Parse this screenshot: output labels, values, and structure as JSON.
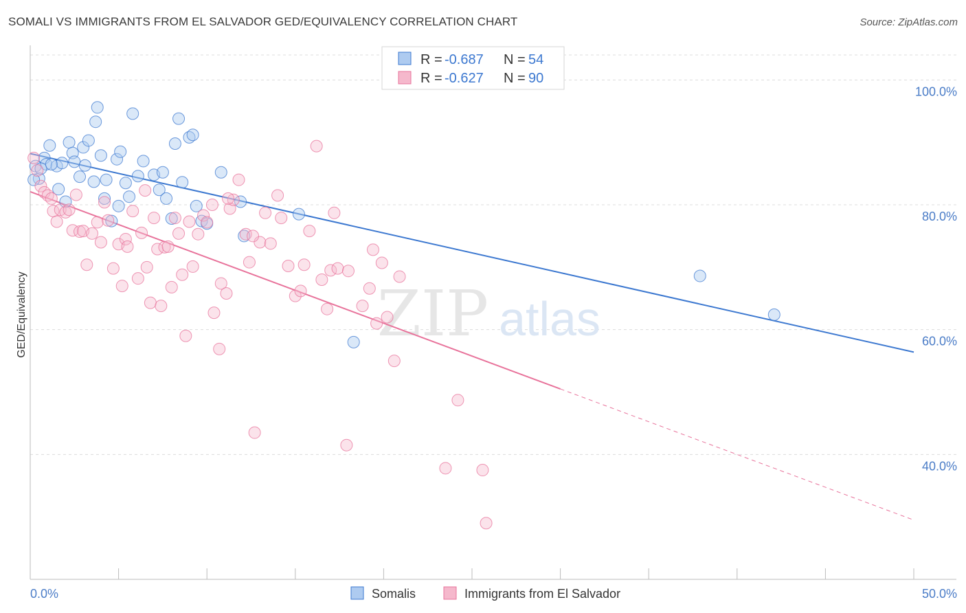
{
  "title": "SOMALI VS IMMIGRANTS FROM EL SALVADOR GED/EQUIVALENCY CORRELATION CHART",
  "source": "Source: ZipAtlas.com",
  "watermark": {
    "zip": "ZIP",
    "atlas": "atlas"
  },
  "colors": {
    "blue": "#3c78d0",
    "blue_fill": "#aecbf0",
    "pink": "#e8739b",
    "pink_fill": "#f5b8cc"
  },
  "legend": {
    "rows": [
      {
        "r_label": "R = ",
        "r_value": "-0.687",
        "n_label": "N = ",
        "n_value": "54"
      },
      {
        "r_label": "R = ",
        "r_value": "-0.627",
        "n_label": "N = ",
        "n_value": "90"
      }
    ]
  },
  "bottom_legend": [
    "Somalis",
    "Immigrants from El Salvador"
  ],
  "chart_data": {
    "type": "scatter",
    "ylabel": "GED/Equivalency",
    "xlim": [
      0,
      50
    ],
    "ylim": [
      20,
      104
    ],
    "x_tick_labels": [
      {
        "x": 0,
        "label": "0.0%"
      },
      {
        "x": 50,
        "label": "50.0%"
      }
    ],
    "y_tick_labels": [
      {
        "y": 100,
        "label": "100.0%"
      },
      {
        "y": 80,
        "label": "80.0%"
      },
      {
        "y": 60,
        "label": "60.0%"
      },
      {
        "y": 40,
        "label": "40.0%"
      }
    ],
    "grid": true,
    "series": [
      {
        "name": "Somalis",
        "color": "#3c78d0",
        "trend": {
          "x0": 0,
          "y0": 88.2,
          "x1": 50,
          "y1": 56.4
        },
        "points": [
          [
            0.3,
            86.2
          ],
          [
            0.5,
            84.2
          ],
          [
            0.8,
            87.5
          ],
          [
            1.1,
            89.5
          ],
          [
            0.9,
            86.5
          ],
          [
            1.5,
            86.2
          ],
          [
            1.6,
            82.5
          ],
          [
            1.8,
            86.7
          ],
          [
            2.0,
            80.5
          ],
          [
            2.2,
            90.0
          ],
          [
            2.4,
            88.3
          ],
          [
            2.5,
            86.9
          ],
          [
            2.8,
            84.5
          ],
          [
            3.0,
            89.2
          ],
          [
            3.1,
            86.3
          ],
          [
            3.3,
            90.3
          ],
          [
            3.6,
            83.7
          ],
          [
            3.7,
            93.3
          ],
          [
            3.8,
            95.6
          ],
          [
            4.0,
            87.9
          ],
          [
            4.2,
            81.0
          ],
          [
            4.3,
            84.0
          ],
          [
            4.6,
            77.4
          ],
          [
            4.9,
            87.3
          ],
          [
            5.0,
            79.8
          ],
          [
            5.1,
            88.5
          ],
          [
            5.4,
            83.5
          ],
          [
            5.6,
            81.3
          ],
          [
            5.8,
            94.6
          ],
          [
            6.1,
            84.6
          ],
          [
            6.4,
            87.0
          ],
          [
            7.0,
            84.8
          ],
          [
            7.3,
            82.4
          ],
          [
            7.5,
            85.2
          ],
          [
            7.7,
            81.0
          ],
          [
            8.0,
            77.8
          ],
          [
            8.2,
            89.8
          ],
          [
            8.4,
            93.8
          ],
          [
            8.6,
            83.6
          ],
          [
            9.0,
            90.8
          ],
          [
            9.2,
            91.2
          ],
          [
            9.4,
            79.8
          ],
          [
            9.7,
            77.4
          ],
          [
            10.8,
            85.2
          ],
          [
            11.9,
            80.5
          ],
          [
            12.1,
            75.0
          ],
          [
            15.2,
            78.5
          ],
          [
            18.3,
            58.0
          ],
          [
            37.9,
            68.6
          ],
          [
            42.1,
            62.4
          ],
          [
            0.2,
            84.0
          ],
          [
            0.6,
            85.8
          ],
          [
            1.2,
            86.5
          ],
          [
            10.0,
            77.0
          ]
        ]
      },
      {
        "name": "Immigrants from El Salvador",
        "color": "#e8739b",
        "trend": {
          "x0": 0,
          "y0": 82.1,
          "x1": 30,
          "y1": 50.5
        },
        "trend_ext": {
          "x0": 30,
          "y0": 50.5,
          "x1": 50,
          "y1": 29.5
        },
        "points": [
          [
            0.2,
            87.5
          ],
          [
            0.4,
            85.5
          ],
          [
            0.6,
            83.0
          ],
          [
            0.8,
            82.0
          ],
          [
            1.0,
            81.5
          ],
          [
            1.2,
            81.0
          ],
          [
            1.3,
            79.0
          ],
          [
            1.5,
            77.3
          ],
          [
            1.7,
            79.2
          ],
          [
            2.0,
            78.8
          ],
          [
            2.2,
            79.2
          ],
          [
            2.4,
            75.9
          ],
          [
            2.6,
            81.6
          ],
          [
            2.8,
            75.7
          ],
          [
            3.0,
            75.8
          ],
          [
            3.2,
            70.4
          ],
          [
            3.5,
            75.4
          ],
          [
            3.8,
            77.2
          ],
          [
            4.0,
            74.0
          ],
          [
            4.2,
            80.4
          ],
          [
            4.4,
            77.5
          ],
          [
            4.7,
            69.8
          ],
          [
            5.0,
            73.7
          ],
          [
            5.2,
            67.0
          ],
          [
            5.4,
            74.5
          ],
          [
            5.5,
            73.3
          ],
          [
            5.8,
            79.0
          ],
          [
            6.1,
            68.2
          ],
          [
            6.3,
            75.5
          ],
          [
            6.5,
            82.3
          ],
          [
            6.6,
            70.0
          ],
          [
            6.8,
            64.3
          ],
          [
            7.0,
            77.9
          ],
          [
            7.2,
            72.9
          ],
          [
            7.4,
            63.8
          ],
          [
            7.6,
            73.2
          ],
          [
            7.8,
            73.3
          ],
          [
            8.0,
            66.8
          ],
          [
            8.2,
            77.9
          ],
          [
            8.4,
            75.4
          ],
          [
            8.6,
            68.8
          ],
          [
            8.8,
            59.0
          ],
          [
            9.0,
            77.3
          ],
          [
            9.2,
            70.1
          ],
          [
            9.5,
            75.3
          ],
          [
            9.8,
            78.3
          ],
          [
            10.0,
            77.2
          ],
          [
            10.3,
            80.0
          ],
          [
            10.4,
            62.7
          ],
          [
            10.7,
            56.9
          ],
          [
            10.8,
            67.4
          ],
          [
            11.1,
            65.8
          ],
          [
            11.3,
            79.4
          ],
          [
            11.5,
            80.8
          ],
          [
            11.8,
            84.0
          ],
          [
            12.2,
            75.3
          ],
          [
            12.4,
            70.8
          ],
          [
            12.7,
            43.5
          ],
          [
            13.0,
            74.0
          ],
          [
            13.3,
            78.7
          ],
          [
            13.6,
            73.8
          ],
          [
            14.0,
            81.5
          ],
          [
            14.2,
            77.9
          ],
          [
            14.6,
            70.2
          ],
          [
            15.0,
            65.4
          ],
          [
            15.3,
            66.2
          ],
          [
            15.5,
            70.4
          ],
          [
            15.8,
            75.8
          ],
          [
            16.2,
            89.4
          ],
          [
            16.5,
            68.0
          ],
          [
            16.8,
            63.3
          ],
          [
            17.0,
            69.5
          ],
          [
            17.2,
            78.7
          ],
          [
            17.4,
            69.8
          ],
          [
            17.9,
            41.5
          ],
          [
            18.0,
            69.4
          ],
          [
            18.8,
            63.8
          ],
          [
            19.2,
            66.6
          ],
          [
            19.4,
            72.8
          ],
          [
            19.6,
            61.0
          ],
          [
            19.9,
            70.7
          ],
          [
            20.2,
            62.0
          ],
          [
            20.6,
            55.0
          ],
          [
            20.9,
            68.5
          ],
          [
            23.5,
            37.8
          ],
          [
            24.2,
            48.7
          ],
          [
            25.6,
            37.5
          ],
          [
            25.8,
            29.0
          ],
          [
            11.2,
            81.0
          ],
          [
            12.6,
            75.0
          ]
        ]
      }
    ]
  }
}
